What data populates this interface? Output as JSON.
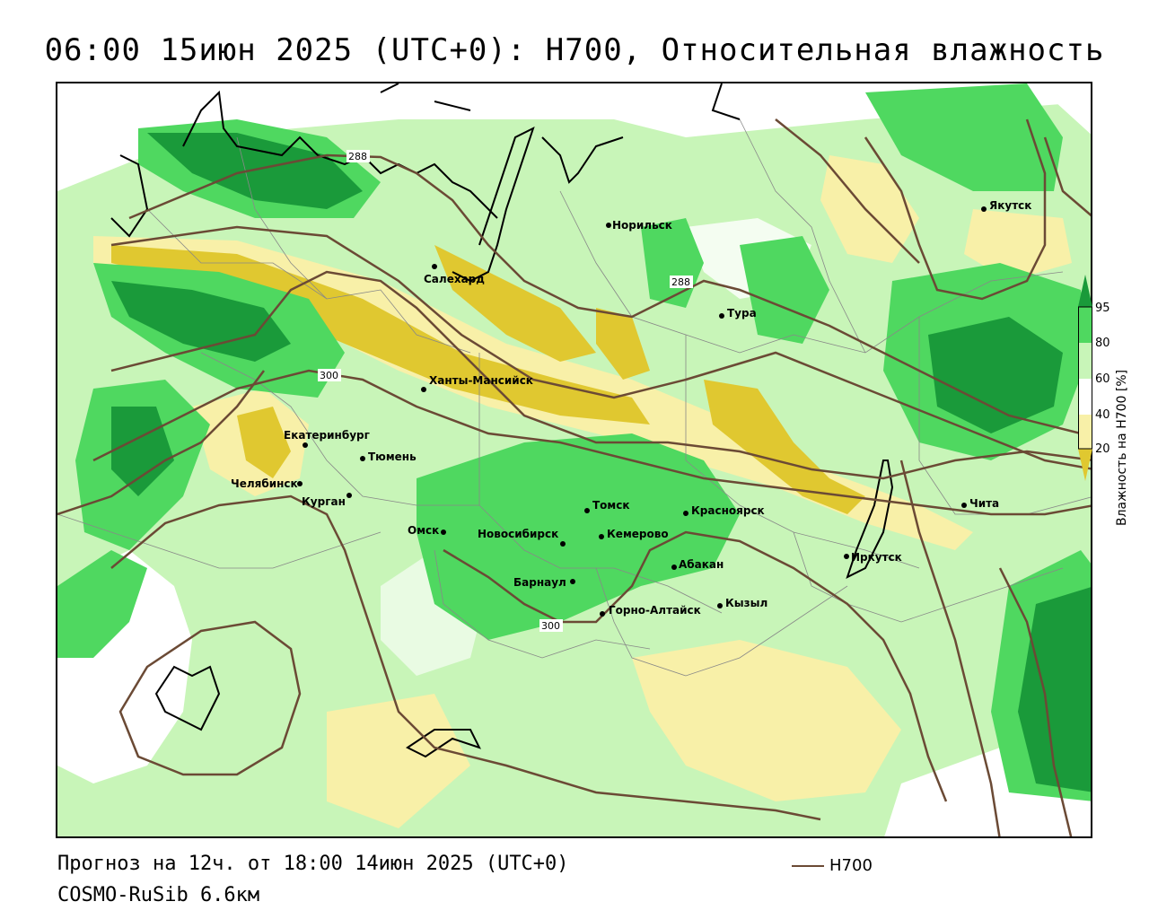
{
  "title": "06:00 15июн 2025 (UTC+0): H700, Относительная влажность",
  "footer": {
    "forecast": "Прогноз на 12ч. от 18:00 14июн 2025 (UTC+0)",
    "model": "COSMO-RuSib 6.6км"
  },
  "legend": {
    "h700_label": "H700",
    "h700_color": "#6b4a35"
  },
  "colorbar": {
    "title": "Влажность на H700 [%]",
    "ticks": [
      "95",
      "80",
      "60",
      "40",
      "20"
    ],
    "colors": {
      "dark_green": "#1a9a3a",
      "green": "#4fd860",
      "light_green": "#c8f5b8",
      "white": "#ffffff",
      "light_yellow": "#f8f0a8",
      "yellow": "#e0c830"
    }
  },
  "contours": {
    "labels": [
      "288",
      "288",
      "300",
      "300"
    ]
  },
  "cities": [
    {
      "name": "Норильск"
    },
    {
      "name": "Якутск"
    },
    {
      "name": "Салехард"
    },
    {
      "name": "Тура"
    },
    {
      "name": "Ханты-Мансийск"
    },
    {
      "name": "Екатеринбург"
    },
    {
      "name": "Тюмень"
    },
    {
      "name": "Челябинск"
    },
    {
      "name": "Курган"
    },
    {
      "name": "Омск"
    },
    {
      "name": "Новосибирск"
    },
    {
      "name": "Томск"
    },
    {
      "name": "Кемерово"
    },
    {
      "name": "Красноярск"
    },
    {
      "name": "Барнаул"
    },
    {
      "name": "Абакан"
    },
    {
      "name": "Горно-Алтайск"
    },
    {
      "name": "Кызыл"
    },
    {
      "name": "Иркутск"
    },
    {
      "name": "Чита"
    }
  ]
}
